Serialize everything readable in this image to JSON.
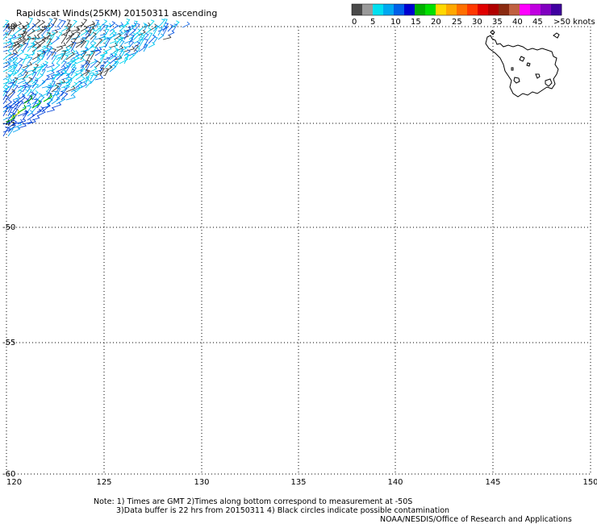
{
  "title": "Rapidscat Winds(25KM) 20150311 ascending",
  "legend": {
    "labels": [
      "0",
      "5",
      "10",
      "15",
      "20",
      "25",
      "30",
      "35",
      "40",
      "45",
      ">50 knots"
    ],
    "colors": [
      "#4a4a4a",
      "#9a9a9a",
      "#00e0f0",
      "#00a8f0",
      "#0060e8",
      "#0000d0",
      "#00b000",
      "#00e000",
      "#ffd800",
      "#ffa800",
      "#ff7000",
      "#ff3800",
      "#e00000",
      "#b00000",
      "#8a2a10",
      "#c06040",
      "#ff00ff",
      "#c000e0",
      "#8000c0",
      "#4000a0"
    ]
  },
  "map": {
    "lon_labels": [
      "120",
      "125",
      "130",
      "135",
      "140",
      "145",
      "150"
    ],
    "lat_labels": [
      "-40",
      "-45",
      "-50",
      "-55",
      "-60"
    ],
    "landmass": "Tasmania coastline"
  },
  "notes": {
    "line1": "Note: 1) Times are GMT 2)Times along bottom correspond to measurement at -50S",
    "line2": "3)Data buffer is 22 hrs from 20150311 4) Black circles indicate possible contamination",
    "credit": "NOAA/NESDIS/Office of Research and Applications"
  }
}
